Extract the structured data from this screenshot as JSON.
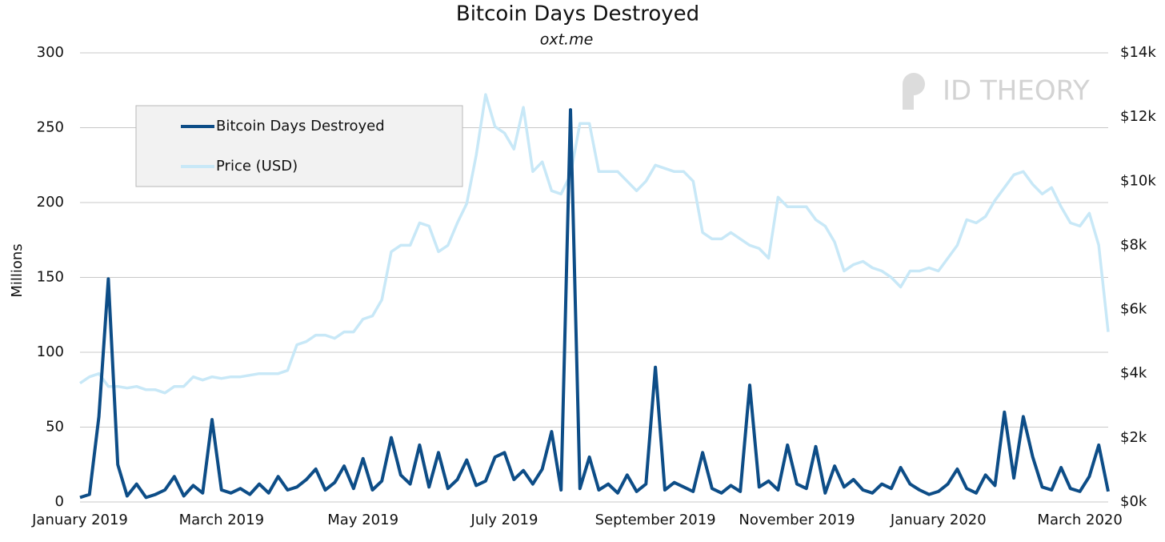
{
  "chart_data": {
    "type": "line",
    "title": "Bitcoin Days Destroyed",
    "subtitle": "oxt.me",
    "watermark": "ID THEORY",
    "ylabel": "Millions",
    "categories": [
      "January 2019",
      null,
      null,
      null,
      null,
      null,
      null,
      null,
      null,
      null,
      null,
      null,
      null,
      null,
      null,
      "March 2019",
      null,
      null,
      null,
      null,
      null,
      null,
      null,
      null,
      null,
      null,
      null,
      null,
      null,
      null,
      "May 2019",
      null,
      null,
      null,
      null,
      null,
      null,
      null,
      null,
      null,
      null,
      null,
      null,
      null,
      null,
      "July 2019",
      null,
      null,
      null,
      null,
      null,
      null,
      null,
      null,
      null,
      null,
      null,
      null,
      null,
      null,
      null,
      "September 2019",
      null,
      null,
      null,
      null,
      null,
      null,
      null,
      null,
      null,
      null,
      null,
      null,
      null,
      null,
      "November 2019",
      null,
      null,
      null,
      null,
      null,
      null,
      null,
      null,
      null,
      null,
      null,
      null,
      null,
      null,
      "January 2020",
      null,
      null,
      null,
      null,
      null,
      null,
      null,
      null,
      null,
      null,
      null,
      null,
      null,
      null,
      "March 2020",
      null,
      null,
      null
    ],
    "series": [
      {
        "name": "Bitcoin Days Destroyed",
        "color": "#0d4d87",
        "axis": "y",
        "values": [
          3,
          5,
          57,
          149,
          25,
          4,
          12,
          3,
          5,
          8,
          17,
          4,
          11,
          6,
          55,
          8,
          6,
          9,
          5,
          12,
          6,
          17,
          8,
          10,
          15,
          22,
          8,
          13,
          24,
          9,
          29,
          8,
          14,
          43,
          18,
          12,
          38,
          10,
          33,
          9,
          15,
          28,
          11,
          14,
          30,
          33,
          15,
          21,
          12,
          22,
          47,
          8,
          262,
          9,
          30,
          8,
          12,
          6,
          18,
          7,
          12,
          90,
          8,
          13,
          10,
          7,
          33,
          9,
          6,
          11,
          7,
          78,
          10,
          14,
          8,
          38,
          12,
          9,
          37,
          6,
          24,
          10,
          15,
          8,
          6,
          12,
          9,
          23,
          12,
          8,
          5,
          7,
          12,
          22,
          9,
          6,
          18,
          11,
          60,
          16,
          57,
          30,
          10,
          8,
          23,
          9,
          7,
          17,
          38,
          7
        ]
      },
      {
        "name": "Price (USD)",
        "color": "#c8e8f7",
        "axis": "y2",
        "values": [
          3700,
          3900,
          4000,
          3600,
          3600,
          3550,
          3600,
          3500,
          3500,
          3400,
          3600,
          3600,
          3900,
          3800,
          3900,
          3850,
          3900,
          3900,
          3950,
          4000,
          4000,
          4000,
          4100,
          4900,
          5000,
          5200,
          5200,
          5100,
          5300,
          5300,
          5700,
          5800,
          6300,
          7800,
          8000,
          8000,
          8700,
          8600,
          7800,
          8000,
          8700,
          9300,
          10800,
          12700,
          11700,
          11500,
          11000,
          12300,
          10300,
          10600,
          9700,
          9600,
          10200,
          11800,
          11800,
          10300,
          10300,
          10300,
          10000,
          9700,
          10000,
          10500,
          10400,
          10300,
          10300,
          10000,
          8400,
          8200,
          8200,
          8400,
          8200,
          8000,
          7900,
          7600,
          9500,
          9200,
          9200,
          9200,
          8800,
          8600,
          8100,
          7200,
          7400,
          7500,
          7300,
          7200,
          7000,
          6700,
          7200,
          7200,
          7300,
          7200,
          7600,
          8000,
          8800,
          8700,
          8900,
          9400,
          9800,
          10200,
          10300,
          9900,
          9600,
          9800,
          9200,
          8700,
          8600,
          9000,
          8000,
          5300
        ]
      }
    ],
    "ylim": [
      0,
      300
    ],
    "yticks": [
      0,
      50,
      100,
      150,
      200,
      250,
      300
    ],
    "y2lim": [
      0,
      14000
    ],
    "y2ticks": [
      {
        "value": 0,
        "label": "$0k"
      },
      {
        "value": 2000,
        "label": "$2k"
      },
      {
        "value": 4000,
        "label": "$4k"
      },
      {
        "value": 6000,
        "label": "$6k"
      },
      {
        "value": 8000,
        "label": "$8k"
      },
      {
        "value": 10000,
        "label": "$10k"
      },
      {
        "value": 12000,
        "label": "$12k"
      },
      {
        "value": 14000,
        "label": "$14k"
      }
    ],
    "grid": true,
    "legend": "upper left"
  }
}
